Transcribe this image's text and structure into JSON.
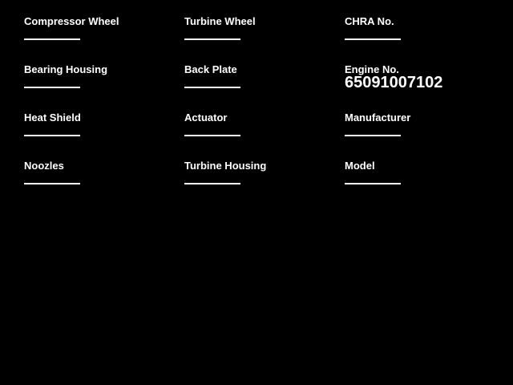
{
  "page": {
    "background_color": "#000000",
    "text_color": "#ffffff"
  },
  "form": {
    "fields": [
      {
        "label": "Compressor Wheel",
        "value": ""
      },
      {
        "label": "Turbine Wheel",
        "value": ""
      },
      {
        "label": "CHRA No.",
        "value": ""
      },
      {
        "label": "Bearing Housing",
        "value": ""
      },
      {
        "label": "Back Plate",
        "value": ""
      },
      {
        "label": "Engine No.",
        "value": "65091007102"
      },
      {
        "label": "Heat Shield",
        "value": ""
      },
      {
        "label": "Actuator",
        "value": ""
      },
      {
        "label": "Manufacturer",
        "value": ""
      },
      {
        "label": "Noozles",
        "value": ""
      },
      {
        "label": "Turbine Housing",
        "value": ""
      },
      {
        "label": "Model",
        "value": ""
      }
    ]
  }
}
